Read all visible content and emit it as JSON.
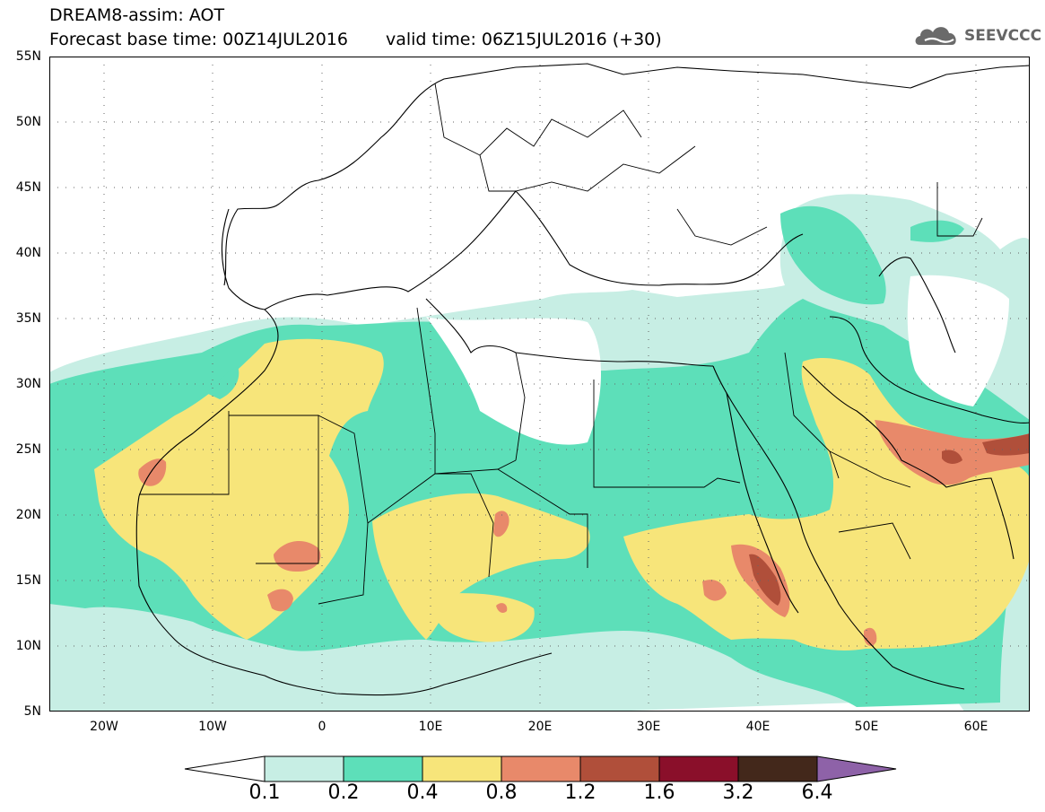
{
  "header": {
    "title": "DREAM8-assim: AOT",
    "base_time": "Forecast base time: 00Z14JUL2016",
    "valid_time": "valid time: 06Z15JUL2016 (+30)"
  },
  "logo": {
    "text": "SEEVCCC",
    "icon": "cloud-icon"
  },
  "map": {
    "projection": "lat-lon",
    "lon_range": [
      -25,
      65
    ],
    "lat_range": [
      5,
      55
    ],
    "grid": "dotted",
    "lat_labels": [
      "55N",
      "50N",
      "45N",
      "40N",
      "35N",
      "30N",
      "25N",
      "20N",
      "15N",
      "10N",
      "5N"
    ],
    "lon_labels": [
      "20W",
      "10W",
      "0",
      "10E",
      "20E",
      "30E",
      "40E",
      "50E",
      "60E"
    ]
  },
  "colorbar": {
    "labels": [
      "0.1",
      "0.2",
      "0.4",
      "0.8",
      "1.2",
      "1.6",
      "3.2",
      "6.4"
    ],
    "colors": [
      "#ffffff",
      "#c7eee4",
      "#5ddfb9",
      "#f7e57a",
      "#e8896a",
      "#b04f3a",
      "#8a0f2a",
      "#43281b",
      "#8e62a8"
    ]
  }
}
